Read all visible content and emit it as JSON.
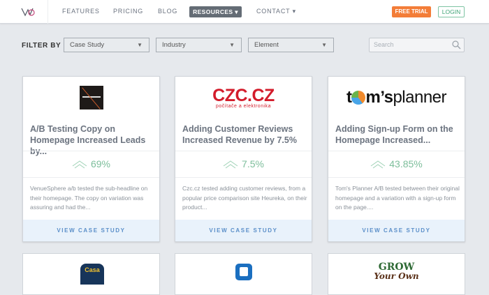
{
  "header": {
    "logo": "VWO",
    "nav": [
      "FEATURES",
      "PRICING",
      "BLOG"
    ],
    "resources": "RESOURCES ▾",
    "contact": "CONTACT ▾",
    "free_trial": "FREE TRIAL",
    "login": "LOGIN"
  },
  "filters": {
    "label": "FILTER BY",
    "selects": [
      "Case Study",
      "Industry",
      "Element"
    ],
    "search_placeholder": "Search"
  },
  "cards": [
    {
      "logo": "venuesphere",
      "title": "A/B Testing Copy on Homepage Increased Leads by...",
      "stat": "69%",
      "desc": "VenueSphere a/b tested the sub-headline on their homepage. The copy on variation was assuring and had the...",
      "cta": "VIEW CASE STUDY"
    },
    {
      "logo": "CZC.CZ",
      "logo_sub": "počítače a elektronika",
      "title": "Adding Customer Reviews Increased Revenue by 7.5%",
      "stat": "7.5%",
      "desc": "Czc.cz tested adding customer reviews, from a popular price comparison site Heureka, on their product...",
      "cta": "VIEW CASE STUDY"
    },
    {
      "logo": "tom'splanner",
      "title": "Adding Sign-up Form on the Homepage Increased...",
      "stat": "43.85%",
      "desc": "Tom's Planner A/B tested between their original homepage and a variation with a sign-up form on the page....",
      "cta": "VIEW CASE STUDY"
    }
  ],
  "row2": [
    {
      "logo": "Casa Mineira"
    },
    {
      "logo": "shirt"
    },
    {
      "logo": "GROW Your Own"
    }
  ],
  "colors": {
    "accent_orange": "#f37d38",
    "green": "#7dbe9b",
    "link_blue": "#5b8fc9"
  }
}
